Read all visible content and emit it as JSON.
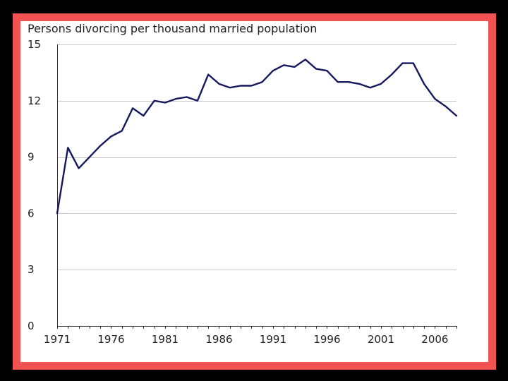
{
  "colors": {
    "frame": "#f05352",
    "background": "#000000",
    "line": "#16185e",
    "grid": "#c8c8c8"
  },
  "chart_data": {
    "type": "line",
    "title": "Persons divorcing per thousand married population",
    "xlabel": "",
    "ylabel": "",
    "xlim": [
      1971,
      2008
    ],
    "ylim": [
      0,
      15
    ],
    "yticks": [
      0,
      3,
      6,
      9,
      12,
      15
    ],
    "xticks": [
      1971,
      1976,
      1981,
      1986,
      1991,
      1996,
      2001,
      2006
    ],
    "grid": "horizontal",
    "legend": "none",
    "x": [
      1971,
      1972,
      1973,
      1974,
      1975,
      1976,
      1977,
      1978,
      1979,
      1980,
      1981,
      1982,
      1983,
      1984,
      1985,
      1986,
      1987,
      1988,
      1989,
      1990,
      1991,
      1992,
      1993,
      1994,
      1995,
      1996,
      1997,
      1998,
      1999,
      2000,
      2001,
      2002,
      2003,
      2004,
      2005,
      2006,
      2007,
      2008
    ],
    "series": [
      {
        "values": [
          6.0,
          9.5,
          8.4,
          9.0,
          9.6,
          10.1,
          10.4,
          11.6,
          11.2,
          12.0,
          11.9,
          12.1,
          12.2,
          12.0,
          13.4,
          12.9,
          12.7,
          12.8,
          12.8,
          13.0,
          13.6,
          13.9,
          13.8,
          14.2,
          13.7,
          13.6,
          13.0,
          13.0,
          12.9,
          12.7,
          12.9,
          13.4,
          14.0,
          14.0,
          12.9,
          12.1,
          11.7,
          11.2
        ]
      }
    ]
  }
}
